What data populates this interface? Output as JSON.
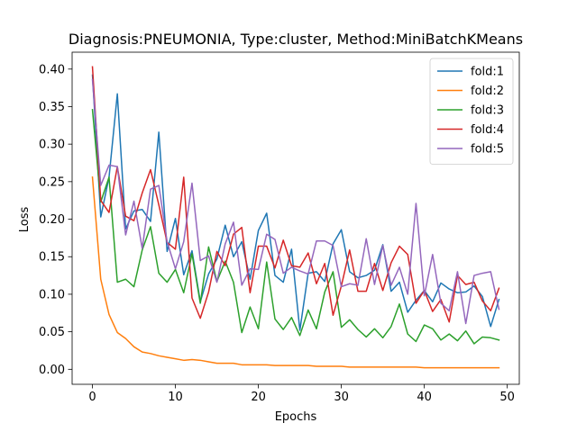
{
  "chart_data": {
    "type": "line",
    "title": "Diagnosis:PNEUMONIA, Type:cluster, Method:MiniBatchKMeans",
    "xlabel": "Epochs",
    "ylabel": "Loss",
    "xlim": [
      -2.45,
      51.45
    ],
    "ylim": [
      -0.02,
      0.4225
    ],
    "xticks": [
      0,
      10,
      20,
      30,
      40,
      50
    ],
    "yticks": [
      0.0,
      0.05,
      0.1,
      0.15,
      0.2,
      0.25,
      0.3,
      0.35,
      0.4
    ],
    "ytick_labels": [
      "0.00",
      "0.05",
      "0.10",
      "0.15",
      "0.20",
      "0.25",
      "0.30",
      "0.35",
      "0.40"
    ],
    "grid": false,
    "legend_position": "top-right",
    "series": [
      {
        "name": "fold:1",
        "color": "#1f77b4",
        "values": [
          0.392,
          0.203,
          0.256,
          0.367,
          0.187,
          0.211,
          0.213,
          0.197,
          0.316,
          0.157,
          0.201,
          0.126,
          0.158,
          0.09,
          0.127,
          0.147,
          0.192,
          0.15,
          0.17,
          0.12,
          0.185,
          0.208,
          0.125,
          0.116,
          0.16,
          0.052,
          0.128,
          0.13,
          0.117,
          0.167,
          0.186,
          0.13,
          0.122,
          0.125,
          0.132,
          0.166,
          0.104,
          0.116,
          0.076,
          0.092,
          0.105,
          0.09,
          0.115,
          0.107,
          0.102,
          0.103,
          0.111,
          0.097,
          0.057,
          0.093
        ]
      },
      {
        "name": "fold:2",
        "color": "#ff7f0e",
        "values": [
          0.256,
          0.12,
          0.073,
          0.049,
          0.041,
          0.03,
          0.023,
          0.021,
          0.018,
          0.016,
          0.014,
          0.012,
          0.013,
          0.012,
          0.01,
          0.008,
          0.008,
          0.008,
          0.006,
          0.006,
          0.006,
          0.006,
          0.005,
          0.005,
          0.005,
          0.005,
          0.005,
          0.004,
          0.004,
          0.004,
          0.004,
          0.003,
          0.003,
          0.003,
          0.003,
          0.003,
          0.003,
          0.003,
          0.003,
          0.003,
          0.002,
          0.002,
          0.002,
          0.002,
          0.002,
          0.002,
          0.002,
          0.002,
          0.002,
          0.002
        ]
      },
      {
        "name": "fold:3",
        "color": "#2ca02c",
        "values": [
          0.346,
          0.223,
          0.256,
          0.116,
          0.12,
          0.11,
          0.159,
          0.19,
          0.128,
          0.116,
          0.133,
          0.102,
          0.154,
          0.088,
          0.163,
          0.117,
          0.144,
          0.116,
          0.049,
          0.083,
          0.054,
          0.143,
          0.067,
          0.053,
          0.069,
          0.045,
          0.079,
          0.054,
          0.103,
          0.13,
          0.056,
          0.066,
          0.053,
          0.043,
          0.054,
          0.042,
          0.057,
          0.087,
          0.047,
          0.037,
          0.059,
          0.054,
          0.039,
          0.047,
          0.038,
          0.051,
          0.034,
          0.043,
          0.042,
          0.039
        ]
      },
      {
        "name": "fold:4",
        "color": "#d62728",
        "values": [
          0.403,
          0.225,
          0.209,
          0.27,
          0.204,
          0.198,
          0.235,
          0.266,
          0.219,
          0.169,
          0.16,
          0.256,
          0.095,
          0.068,
          0.103,
          0.157,
          0.138,
          0.18,
          0.189,
          0.102,
          0.164,
          0.164,
          0.135,
          0.172,
          0.138,
          0.136,
          0.155,
          0.114,
          0.141,
          0.072,
          0.111,
          0.159,
          0.104,
          0.104,
          0.141,
          0.105,
          0.142,
          0.164,
          0.153,
          0.088,
          0.105,
          0.077,
          0.093,
          0.063,
          0.125,
          0.113,
          0.116,
          0.091,
          0.078,
          0.108
        ]
      },
      {
        "name": "fold:5",
        "color": "#9467bd",
        "values": [
          0.386,
          0.245,
          0.272,
          0.27,
          0.179,
          0.224,
          0.161,
          0.24,
          0.245,
          0.17,
          0.134,
          0.17,
          0.248,
          0.145,
          0.151,
          0.116,
          0.167,
          0.196,
          0.112,
          0.134,
          0.133,
          0.18,
          0.173,
          0.128,
          0.136,
          0.131,
          0.127,
          0.171,
          0.171,
          0.165,
          0.11,
          0.114,
          0.112,
          0.174,
          0.113,
          0.165,
          0.112,
          0.136,
          0.1,
          0.221,
          0.098,
          0.153,
          0.088,
          0.078,
          0.13,
          0.061,
          0.125,
          0.128,
          0.13,
          0.08
        ]
      }
    ]
  }
}
